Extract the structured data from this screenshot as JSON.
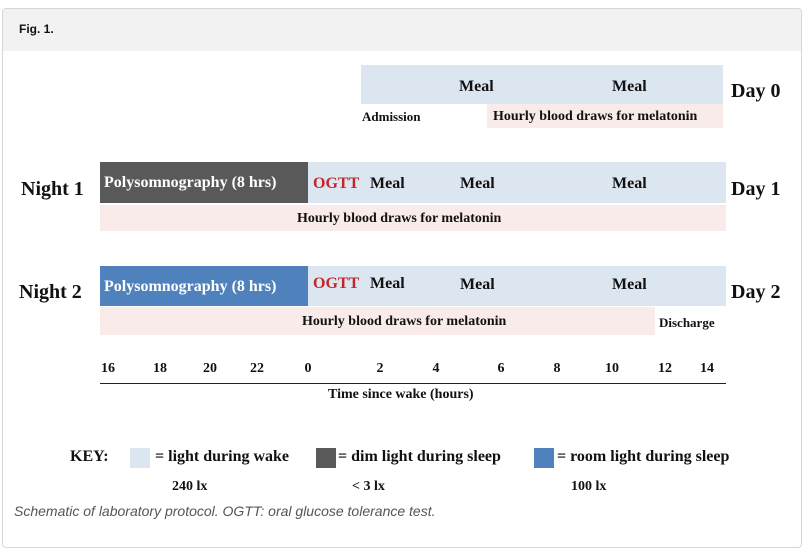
{
  "figure": {
    "label": "Fig. 1.",
    "caption": "Schematic of laboratory protocol. OGTT: oral glucose tolerance test."
  },
  "colors": {
    "light_wake": "#dce6f1",
    "dim_sleep": "#595959",
    "room_sleep": "#4f81bd",
    "blood_draw_band": "#f9ebea",
    "ogtt_text": "#c0272d"
  },
  "rows": {
    "day0": {
      "day_label": "Day 0",
      "meals": [
        "Meal",
        "Meal"
      ],
      "admission": "Admission",
      "blood_draws": "Hourly blood draws for melatonin"
    },
    "night1": {
      "night_label": "Night 1",
      "day_label": "Day 1",
      "sleep": "Polysomnography (8 hrs)",
      "ogtt": "OGTT",
      "meals": [
        "Meal",
        "Meal",
        "Meal"
      ],
      "blood_draws": "Hourly blood draws for melatonin"
    },
    "night2": {
      "night_label": "Night 2",
      "day_label": "Day 2",
      "sleep": "Polysomnography (8 hrs)",
      "ogtt": "OGTT",
      "meals": [
        "Meal",
        "Meal",
        "Meal"
      ],
      "blood_draws": "Hourly blood draws for melatonin",
      "discharge": "Discharge"
    }
  },
  "axis": {
    "ticks": [
      "16",
      "18",
      "20",
      "22",
      "0",
      "2",
      "4",
      "6",
      "8",
      "10",
      "12",
      "14"
    ],
    "label": "Time since wake (hours)"
  },
  "key": {
    "title": "KEY:",
    "items": [
      {
        "label": "= light during wake",
        "sub": "240 lx"
      },
      {
        "label": "= dim light during sleep",
        "sub": "< 3 lx"
      },
      {
        "label": "= room light during sleep",
        "sub": "100 lx"
      }
    ]
  }
}
